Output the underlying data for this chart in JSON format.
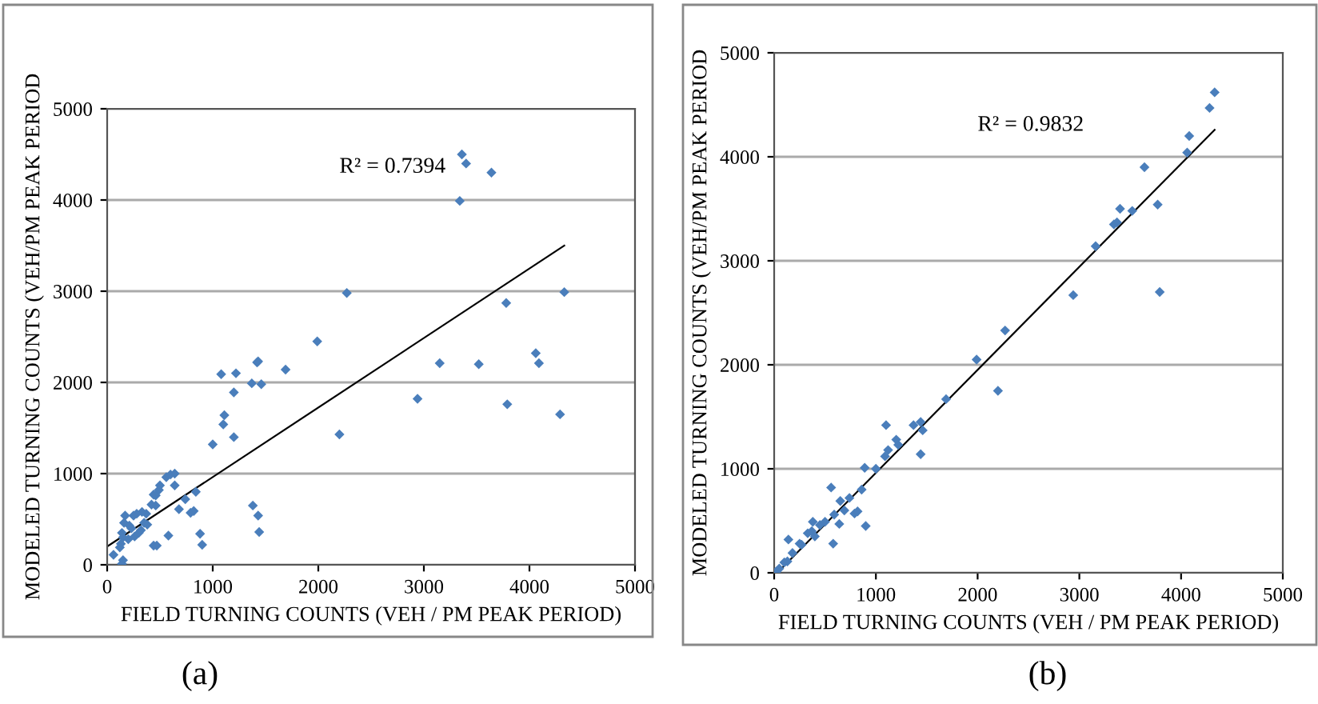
{
  "chart_data": [
    {
      "type": "scatter",
      "xlabel": "FIELD TURNING COUNTS (VEH / PM PEAK PERIOD)",
      "ylabel": "MODELED TURNING COUNTS (VEH/PM PEAK PERIOD",
      "annotations": [
        "R² = 0.7394",
        "(a)"
      ],
      "xlim": [
        0,
        5000
      ],
      "ylim": [
        0,
        5000
      ],
      "xticks": [
        0,
        1000,
        2000,
        3000,
        4000,
        5000
      ],
      "yticks": [
        0,
        1000,
        2000,
        3000,
        4000,
        5000
      ],
      "grid": "y",
      "legend": false,
      "marker": "diamond",
      "series": [
        {
          "color": "#4a7ebb",
          "x": [
            3360,
            3400,
            3640,
            3340,
            2270,
            4330,
            3780,
            1990,
            4060,
            3150,
            3520,
            4090,
            2940,
            3790,
            4290,
            2200,
            1420,
            1430,
            1080,
            1220,
            1690,
            1370,
            1460,
            1200,
            1110,
            1100,
            1200,
            1000,
            560,
            600,
            640,
            640,
            500,
            490,
            460,
            440,
            460,
            420,
            840,
            740,
            680,
            790,
            820,
            880,
            900,
            1380,
            1430,
            1440,
            580,
            440,
            470,
            380,
            370,
            330,
            280,
            250,
            170,
            160,
            210,
            230,
            140,
            150,
            200,
            260,
            300,
            130,
            120,
            350,
            150,
            60,
            140,
            320
          ],
          "values": [
            4500,
            4400,
            4300,
            3990,
            2980,
            2990,
            2870,
            2450,
            2320,
            2210,
            2200,
            2210,
            1820,
            1760,
            1650,
            1430,
            2220,
            2230,
            2090,
            2100,
            2140,
            1990,
            1980,
            1890,
            1640,
            1540,
            1400,
            1320,
            960,
            990,
            1000,
            870,
            870,
            820,
            760,
            770,
            650,
            660,
            800,
            720,
            610,
            570,
            590,
            340,
            220,
            650,
            540,
            360,
            320,
            210,
            210,
            440,
            560,
            580,
            560,
            540,
            540,
            460,
            430,
            400,
            350,
            300,
            280,
            310,
            350,
            230,
            190,
            460,
            50,
            110,
            10,
            380
          ]
        },
        {
          "type": "line",
          "color": "#000000",
          "marker": "none",
          "x": [
            0,
            4330
          ],
          "values": [
            200,
            3500
          ]
        }
      ]
    },
    {
      "type": "scatter",
      "xlabel": "FIELD TURNING COUNTS (VEH / PM PEAK PERIOD)",
      "ylabel": "MODELED TURNING COUNTS (VEH/PM PEAK PERIOD",
      "annotations": [
        "R² = 0.9832",
        "(b)"
      ],
      "xlim": [
        0,
        5000
      ],
      "ylim": [
        0,
        5000
      ],
      "xticks": [
        0,
        1000,
        2000,
        3000,
        4000,
        5000
      ],
      "yticks": [
        0,
        1000,
        2000,
        3000,
        4000,
        5000
      ],
      "grid": "y",
      "legend": false,
      "marker": "diamond",
      "series": [
        {
          "color": "#4a7ebb",
          "x": [
            4330,
            4280,
            4080,
            4060,
            3640,
            3400,
            3520,
            3770,
            3340,
            3370,
            3160,
            2940,
            3790,
            2270,
            1990,
            2200,
            1690,
            1440,
            1370,
            1460,
            1100,
            1120,
            1090,
            1200,
            1220,
            1440,
            1000,
            890,
            860,
            740,
            650,
            690,
            590,
            640,
            790,
            820,
            900,
            580,
            560,
            380,
            370,
            330,
            250,
            100,
            50,
            20,
            140,
            450,
            500,
            400,
            270,
            180,
            130
          ],
          "values": [
            4620,
            4470,
            4200,
            4040,
            3900,
            3500,
            3480,
            3540,
            3350,
            3370,
            3140,
            2670,
            2700,
            2330,
            2050,
            1750,
            1670,
            1450,
            1420,
            1370,
            1420,
            1180,
            1120,
            1280,
            1230,
            1140,
            1000,
            1010,
            800,
            720,
            690,
            600,
            560,
            470,
            570,
            590,
            450,
            280,
            820,
            490,
            400,
            380,
            280,
            100,
            40,
            10,
            320,
            460,
            490,
            350,
            270,
            190,
            110
          ]
        },
        {
          "type": "line",
          "color": "#000000",
          "marker": "none",
          "x": [
            30,
            4330
          ],
          "values": [
            0,
            4260
          ]
        }
      ]
    }
  ]
}
